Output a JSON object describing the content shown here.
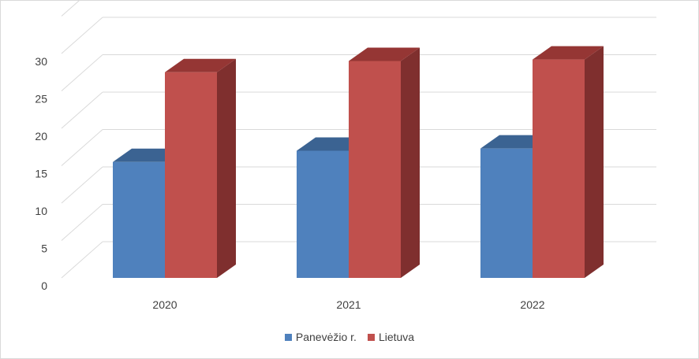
{
  "chart_data": {
    "type": "bar",
    "categories": [
      "2020",
      "2021",
      "2022"
    ],
    "series": [
      {
        "name": "Panevėžio r.",
        "values": [
          15.5,
          17.0,
          17.3
        ],
        "color": "#4f81bd",
        "top_color": "#3b6392",
        "side_color": "#3b6392"
      },
      {
        "name": "Lietuva",
        "values": [
          27.5,
          29.0,
          29.2
        ],
        "color": "#c0504d",
        "top_color": "#953634",
        "side_color": "#7f2f2e"
      }
    ],
    "yticks": [
      "0",
      "5",
      "10",
      "15",
      "20",
      "25",
      "30"
    ],
    "ylim": [
      0,
      30
    ],
    "grid": true,
    "legend_position": "bottom"
  }
}
